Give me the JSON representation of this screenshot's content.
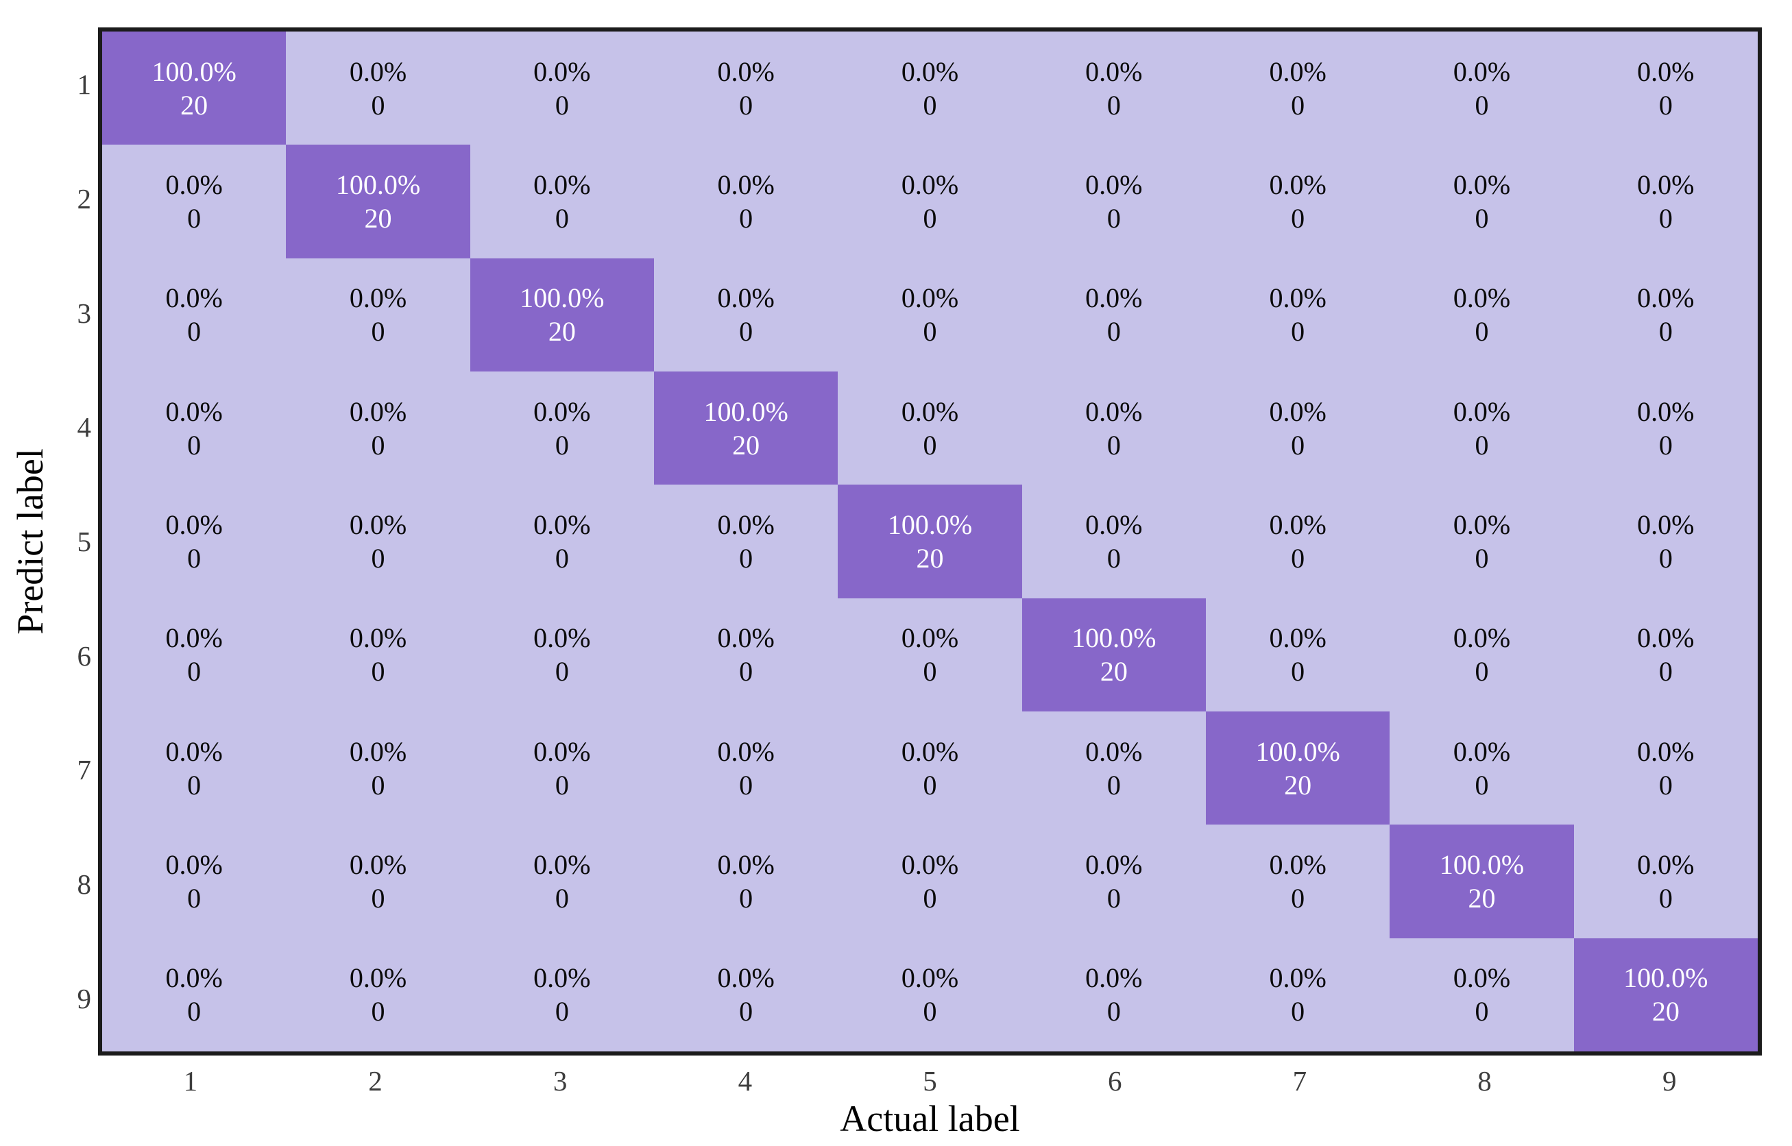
{
  "chart_data": {
    "type": "heatmap",
    "subtype": "confusion-matrix",
    "title": "",
    "xlabel": "Actual label",
    "ylabel": "Predict label",
    "x_tick_labels": [
      "1",
      "2",
      "3",
      "4",
      "5",
      "6",
      "7",
      "8",
      "9"
    ],
    "y_tick_labels": [
      "1",
      "2",
      "3",
      "4",
      "5",
      "6",
      "7",
      "8",
      "9"
    ],
    "legend": false,
    "colorbar": false,
    "grid": false,
    "cell_value_format": "percent over count",
    "percents": [
      [
        "100.0%",
        "0.0%",
        "0.0%",
        "0.0%",
        "0.0%",
        "0.0%",
        "0.0%",
        "0.0%",
        "0.0%"
      ],
      [
        "0.0%",
        "100.0%",
        "0.0%",
        "0.0%",
        "0.0%",
        "0.0%",
        "0.0%",
        "0.0%",
        "0.0%"
      ],
      [
        "0.0%",
        "0.0%",
        "100.0%",
        "0.0%",
        "0.0%",
        "0.0%",
        "0.0%",
        "0.0%",
        "0.0%"
      ],
      [
        "0.0%",
        "0.0%",
        "0.0%",
        "100.0%",
        "0.0%",
        "0.0%",
        "0.0%",
        "0.0%",
        "0.0%"
      ],
      [
        "0.0%",
        "0.0%",
        "0.0%",
        "0.0%",
        "100.0%",
        "0.0%",
        "0.0%",
        "0.0%",
        "0.0%"
      ],
      [
        "0.0%",
        "0.0%",
        "0.0%",
        "0.0%",
        "0.0%",
        "100.0%",
        "0.0%",
        "0.0%",
        "0.0%"
      ],
      [
        "0.0%",
        "0.0%",
        "0.0%",
        "0.0%",
        "0.0%",
        "0.0%",
        "100.0%",
        "0.0%",
        "0.0%"
      ],
      [
        "0.0%",
        "0.0%",
        "0.0%",
        "0.0%",
        "0.0%",
        "0.0%",
        "0.0%",
        "100.0%",
        "0.0%"
      ],
      [
        "0.0%",
        "0.0%",
        "0.0%",
        "0.0%",
        "0.0%",
        "0.0%",
        "0.0%",
        "0.0%",
        "100.0%"
      ]
    ],
    "counts": [
      [
        20,
        0,
        0,
        0,
        0,
        0,
        0,
        0,
        0
      ],
      [
        0,
        20,
        0,
        0,
        0,
        0,
        0,
        0,
        0
      ],
      [
        0,
        0,
        20,
        0,
        0,
        0,
        0,
        0,
        0
      ],
      [
        0,
        0,
        0,
        20,
        0,
        0,
        0,
        0,
        0
      ],
      [
        0,
        0,
        0,
        0,
        20,
        0,
        0,
        0,
        0
      ],
      [
        0,
        0,
        0,
        0,
        0,
        20,
        0,
        0,
        0
      ],
      [
        0,
        0,
        0,
        0,
        0,
        0,
        20,
        0,
        0
      ],
      [
        0,
        0,
        0,
        0,
        0,
        0,
        0,
        20,
        0
      ],
      [
        0,
        0,
        0,
        0,
        0,
        0,
        0,
        0,
        20
      ]
    ],
    "colors": {
      "diagonal_fill": "#8767c9",
      "off_diagonal_fill": "#c6c2e9",
      "text_on_diagonal": "#ffffff",
      "text_on_off_diagonal": "#0a0a0a",
      "tick_label_color": "#3d3d3d",
      "axis_label_color": "#000000",
      "border_color": "#1b1b1b"
    }
  }
}
